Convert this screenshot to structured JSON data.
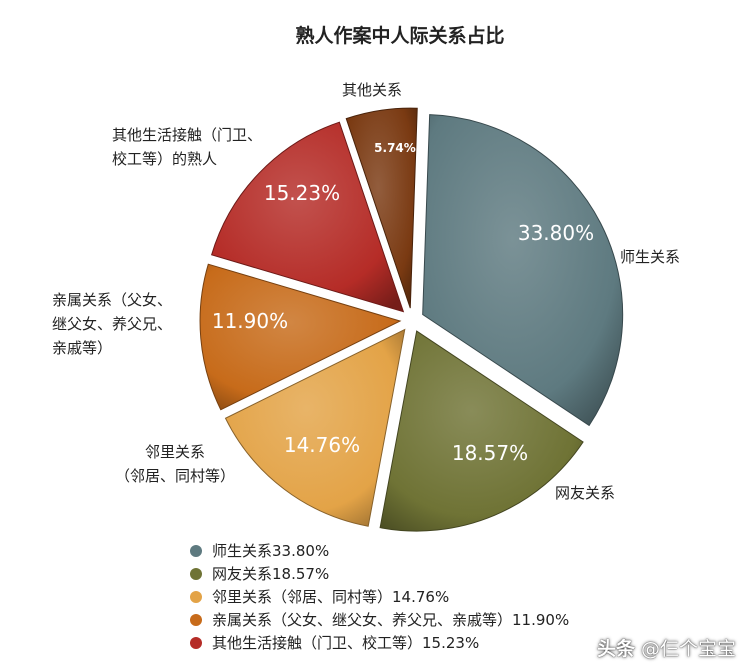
{
  "chart_data": {
    "type": "pie",
    "title": "熟人作案中人际关系占比",
    "slices": [
      {
        "name": "师生关系",
        "value": 33.8,
        "label": "33.80%",
        "outer_label": [
          "师生关系"
        ],
        "legend": "师生关系33.80%",
        "color": "#5e7a80"
      },
      {
        "name": "网友关系",
        "value": 18.57,
        "label": "18.57%",
        "outer_label": [
          "网友关系"
        ],
        "legend": "网友关系18.57%",
        "color": "#6f7335"
      },
      {
        "name": "邻里关系",
        "value": 14.76,
        "label": "14.76%",
        "outer_label": [
          "邻里关系",
          "（邻居、同村等）"
        ],
        "legend": "邻里关系（邻居、同村等）14.76%",
        "color": "#e3a347"
      },
      {
        "name": "亲属关系",
        "value": 11.9,
        "label": "11.90%",
        "outer_label": [
          "亲属关系（父女、",
          "继父女、养父兄、",
          "亲戚等）"
        ],
        "legend": "亲属关系（父女、继父女、养父兄、亲戚等）11.90%",
        "color": "#c76b1a"
      },
      {
        "name": "其他生活接触",
        "value": 15.23,
        "label": "15.23%",
        "outer_label": [
          "其他生活接触（门卫、",
          "校工等）的熟人"
        ],
        "legend": "其他生活接触（门卫、校工等）15.23%",
        "color": "#b52c27"
      },
      {
        "name": "其他关系",
        "value": 5.74,
        "label": "5.74%",
        "outer_label": [
          "其他关系"
        ],
        "legend": "",
        "color": "#7a3a12"
      }
    ],
    "legend_position": "bottom-left"
  },
  "watermark": {
    "logo": "头条",
    "handle": "@仨个宝宝"
  }
}
